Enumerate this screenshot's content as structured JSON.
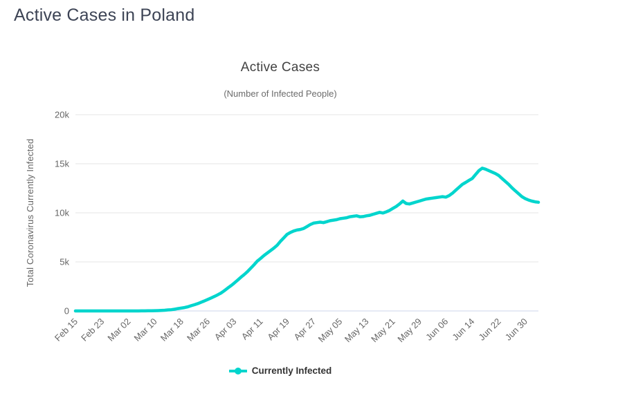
{
  "page": {
    "title": "Active Cases in Poland"
  },
  "chart": {
    "title": "Active Cases",
    "subtitle": "(Number of Infected People)",
    "y_axis_title": "Total Coronavirus Currently Infected",
    "legend_label": "Currently Infected",
    "colors": {
      "series": "#00d5cd",
      "grid": "#e6e6e6",
      "axis_line": "#ccd6eb",
      "tick_text": "#666666",
      "title_text": "#424242",
      "subtitle_text": "#6b6b6b",
      "page_title_text": "#3d4455",
      "legend_text": "#333333"
    }
  },
  "chart_data": {
    "type": "line",
    "title": "Active Cases",
    "subtitle": "(Number of Infected People)",
    "ylabel": "Total Coronavirus Currently Infected",
    "xlabel": "",
    "ylim": [
      0,
      20000
    ],
    "grid": "horizontal",
    "legend_position": "bottom-center",
    "x_tick_labels": [
      "Feb 15",
      "Feb 23",
      "Mar 02",
      "Mar 10",
      "Mar 18",
      "Mar 26",
      "Apr 03",
      "Apr 11",
      "Apr 19",
      "Apr 27",
      "May 05",
      "May 13",
      "May 21",
      "May 29",
      "Jun 06",
      "Jun 14",
      "Jun 22",
      "Jun 30"
    ],
    "x_tick_interval_points": 8,
    "x_start": "Feb 15",
    "x_end": "Jul 04",
    "y_tick_labels": [
      "0",
      "5k",
      "10k",
      "15k",
      "20k"
    ],
    "y_tick_values": [
      0,
      5000,
      10000,
      15000,
      20000
    ],
    "series": [
      {
        "name": "Currently Infected",
        "color": "#00d5cd",
        "values": [
          0,
          0,
          0,
          0,
          0,
          0,
          0,
          0,
          0,
          0,
          0,
          0,
          0,
          0,
          0,
          0,
          0,
          0,
          1,
          1,
          5,
          6,
          11,
          17,
          25,
          35,
          49,
          68,
          103,
          125,
          177,
          238,
          287,
          345,
          425,
          536,
          634,
          749,
          884,
          1021,
          1166,
          1320,
          1475,
          1638,
          1825,
          2055,
          2320,
          2560,
          2840,
          3120,
          3420,
          3700,
          4000,
          4350,
          4700,
          5080,
          5350,
          5650,
          5900,
          6150,
          6400,
          6700,
          7100,
          7450,
          7800,
          8000,
          8150,
          8250,
          8300,
          8400,
          8600,
          8800,
          8950,
          9000,
          9050,
          9000,
          9100,
          9200,
          9250,
          9300,
          9400,
          9450,
          9500,
          9600,
          9650,
          9700,
          9600,
          9620,
          9700,
          9750,
          9850,
          9950,
          10050,
          9980,
          10100,
          10250,
          10450,
          10650,
          10900,
          11200,
          10950,
          10900,
          11000,
          11100,
          11200,
          11300,
          11400,
          11450,
          11500,
          11550,
          11600,
          11650,
          11600,
          11750,
          12000,
          12300,
          12600,
          12900,
          13100,
          13300,
          13500,
          13900,
          14300,
          14550,
          14450,
          14300,
          14150,
          14000,
          13800,
          13500,
          13200,
          12900,
          12550,
          12250,
          11950,
          11650,
          11450,
          11300,
          11200,
          11120,
          11080
        ]
      }
    ]
  }
}
